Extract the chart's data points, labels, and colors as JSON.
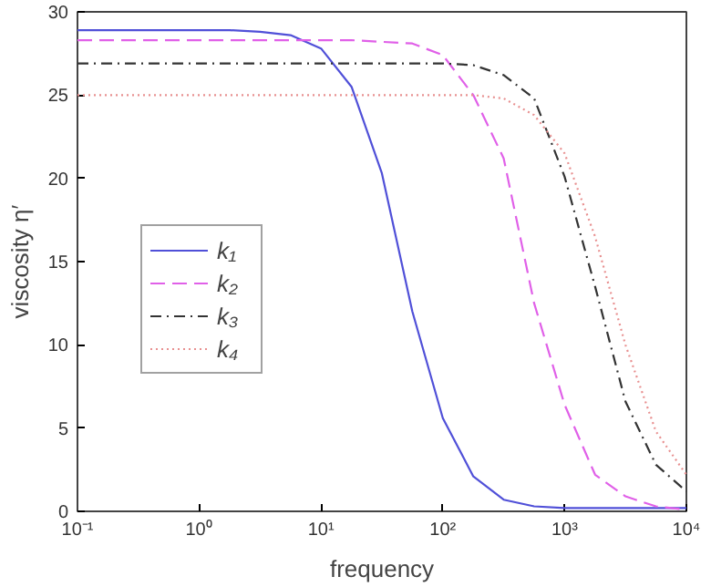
{
  "chart_data": {
    "type": "line",
    "xlabel": "frequency",
    "ylabel": "viscosity η′",
    "log": "x",
    "x": [
      0.1,
      0.178,
      0.316,
      0.562,
      1,
      1.78,
      3.16,
      5.62,
      10,
      17.8,
      31.6,
      56.2,
      100,
      178,
      316,
      562,
      1000,
      1780,
      3160,
      5620,
      10000
    ],
    "series": [
      {
        "name": "k₁",
        "color": "#5050d8",
        "line_style": "solid",
        "values": [
          28.9,
          28.9,
          28.9,
          28.9,
          28.9,
          28.9,
          28.8,
          28.6,
          27.8,
          25.5,
          20.3,
          12,
          5.6,
          2.1,
          0.7,
          0.3,
          0.2,
          0.2,
          0.2,
          0.2,
          0.2
        ]
      },
      {
        "name": "k₂",
        "color": "#e060e8",
        "line_style": "dashed",
        "values": [
          28.3,
          28.3,
          28.3,
          28.3,
          28.3,
          28.3,
          28.3,
          28.3,
          28.3,
          28.3,
          28.2,
          28.1,
          27.4,
          25,
          21.2,
          12.5,
          6.4,
          2.2,
          0.9,
          0.3,
          0.1
        ]
      },
      {
        "name": "k₃",
        "color": "#333333",
        "line_style": "dashdot",
        "values": [
          26.9,
          26.9,
          26.9,
          26.9,
          26.9,
          26.9,
          26.9,
          26.9,
          26.9,
          26.9,
          26.9,
          26.9,
          26.9,
          26.8,
          26.2,
          24.8,
          20.1,
          13.5,
          6.6,
          2.8,
          1.2
        ]
      },
      {
        "name": "k₄",
        "color": "#e89090",
        "line_style": "dotted",
        "values": [
          25,
          25,
          25,
          25,
          25,
          25,
          25,
          25,
          25,
          25,
          25,
          25,
          25,
          25,
          24.8,
          23.8,
          21.5,
          16.5,
          10,
          4.8,
          2.2
        ]
      }
    ],
    "xlim": [
      0.1,
      10000
    ],
    "ylim": [
      0,
      30
    ],
    "xticks": [
      {
        "value": 0.1,
        "label": "10⁻¹"
      },
      {
        "value": 1,
        "label": "10⁰"
      },
      {
        "value": 10,
        "label": "10¹"
      },
      {
        "value": 100,
        "label": "10²"
      },
      {
        "value": 1000,
        "label": "10³"
      },
      {
        "value": 10000,
        "label": "10⁴"
      }
    ],
    "yticks": [
      0,
      5,
      10,
      15,
      20,
      25,
      30
    ],
    "grid": false,
    "legend": "left"
  }
}
